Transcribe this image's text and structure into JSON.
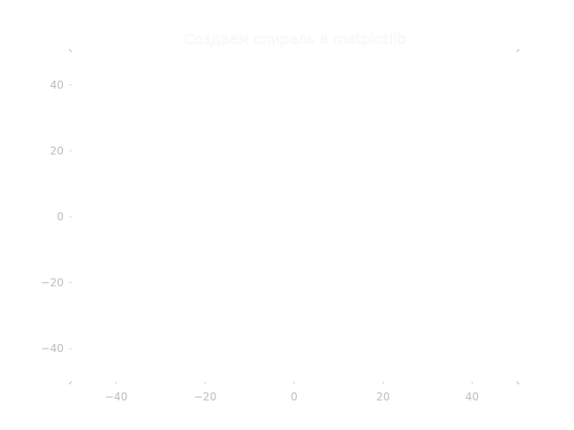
{
  "chart_data": {
    "type": "line",
    "title": "Создаем спираль в matplotlib",
    "xlabel": "",
    "ylabel": "",
    "xlim": [
      -50,
      50
    ],
    "ylim": [
      -50,
      50
    ],
    "x_ticks": [
      -40,
      -20,
      0,
      20,
      40
    ],
    "y_ticks": [
      40,
      20,
      0,
      -20,
      -40
    ],
    "x_tick_labels": [
      "−40",
      "−20",
      "0",
      "20",
      "40"
    ],
    "y_tick_labels": [
      "40",
      "20",
      "0",
      "−20",
      "−40"
    ],
    "grid": false,
    "series": []
  }
}
